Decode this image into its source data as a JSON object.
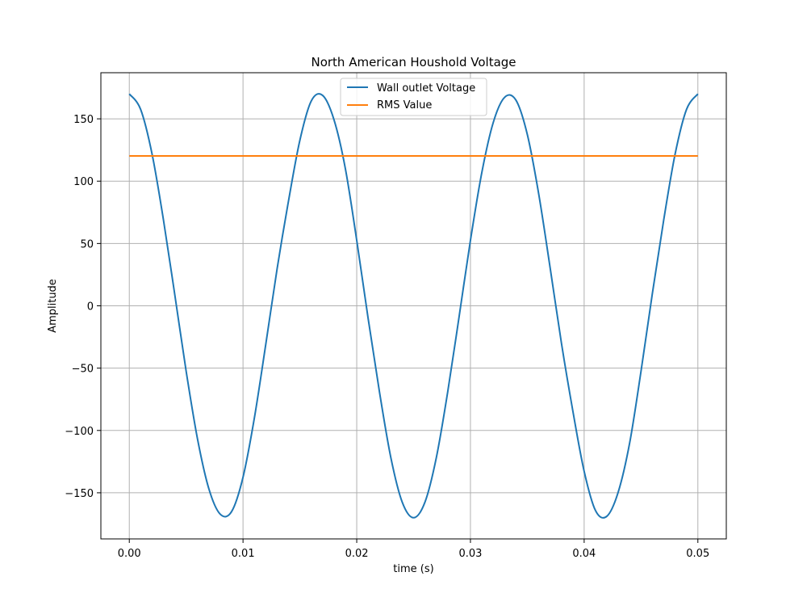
{
  "chart_data": {
    "type": "line",
    "title": "North American Houshold Voltage",
    "xlabel": "time (s)",
    "ylabel": "Amplitude",
    "xlim": [
      -0.0025,
      0.0525
    ],
    "ylim": [
      -187,
      187
    ],
    "grid": true,
    "legend_position": "top-center",
    "xticks": [
      {
        "value": 0.0,
        "label": "0.00"
      },
      {
        "value": 0.01,
        "label": "0.01"
      },
      {
        "value": 0.02,
        "label": "0.02"
      },
      {
        "value": 0.03,
        "label": "0.03"
      },
      {
        "value": 0.04,
        "label": "0.04"
      },
      {
        "value": 0.05,
        "label": "0.05"
      }
    ],
    "yticks": [
      {
        "value": 150,
        "label": "150"
      },
      {
        "value": 100,
        "label": "100"
      },
      {
        "value": 50,
        "label": "50"
      },
      {
        "value": 0,
        "label": "0"
      },
      {
        "value": -50,
        "label": "−50"
      },
      {
        "value": -100,
        "label": "−100"
      },
      {
        "value": -150,
        "label": "−150"
      }
    ],
    "series": [
      {
        "name": "Wall outlet Voltage",
        "color": "#1f77b4",
        "x": [
          0.0,
          0.001,
          0.002,
          0.003,
          0.004,
          0.005,
          0.006,
          0.007,
          0.008,
          0.009,
          0.01,
          0.011,
          0.012,
          0.013,
          0.014,
          0.015,
          0.016,
          0.017,
          0.018,
          0.019,
          0.02,
          0.021,
          0.022,
          0.023,
          0.024,
          0.025,
          0.026,
          0.027,
          0.028,
          0.029,
          0.03,
          0.031,
          0.032,
          0.033,
          0.034,
          0.035,
          0.036,
          0.037,
          0.038,
          0.039,
          0.04,
          0.041,
          0.042,
          0.043,
          0.044,
          0.045,
          0.046,
          0.047,
          0.048,
          0.049,
          0.05
        ],
        "y": [
          170.0,
          157.5,
          121.8,
          69.1,
          8.9,
          -52.5,
          -106.9,
          -146.9,
          -167.2,
          -165.0,
          -137.5,
          -89.9,
          -31.0,
          29.8,
          84.1,
          132.8,
          164.3,
          168.8,
          149.3,
          110.1,
          52.5,
          -10.0,
          -69.1,
          -121.8,
          -157.5,
          -170.0,
          -157.5,
          -121.8,
          -69.1,
          -8.9,
          52.5,
          106.9,
          146.9,
          167.2,
          165.0,
          137.5,
          89.9,
          31.0,
          -29.8,
          -84.1,
          -132.8,
          -164.3,
          -168.8,
          -149.3,
          -110.1,
          -52.5,
          10.0,
          69.1,
          121.8,
          157.5,
          170.0
        ]
      },
      {
        "name": "RMS Value",
        "color": "#ff7f0e",
        "x": [
          0.0,
          0.05
        ],
        "y": [
          120.2,
          120.2
        ]
      }
    ]
  }
}
